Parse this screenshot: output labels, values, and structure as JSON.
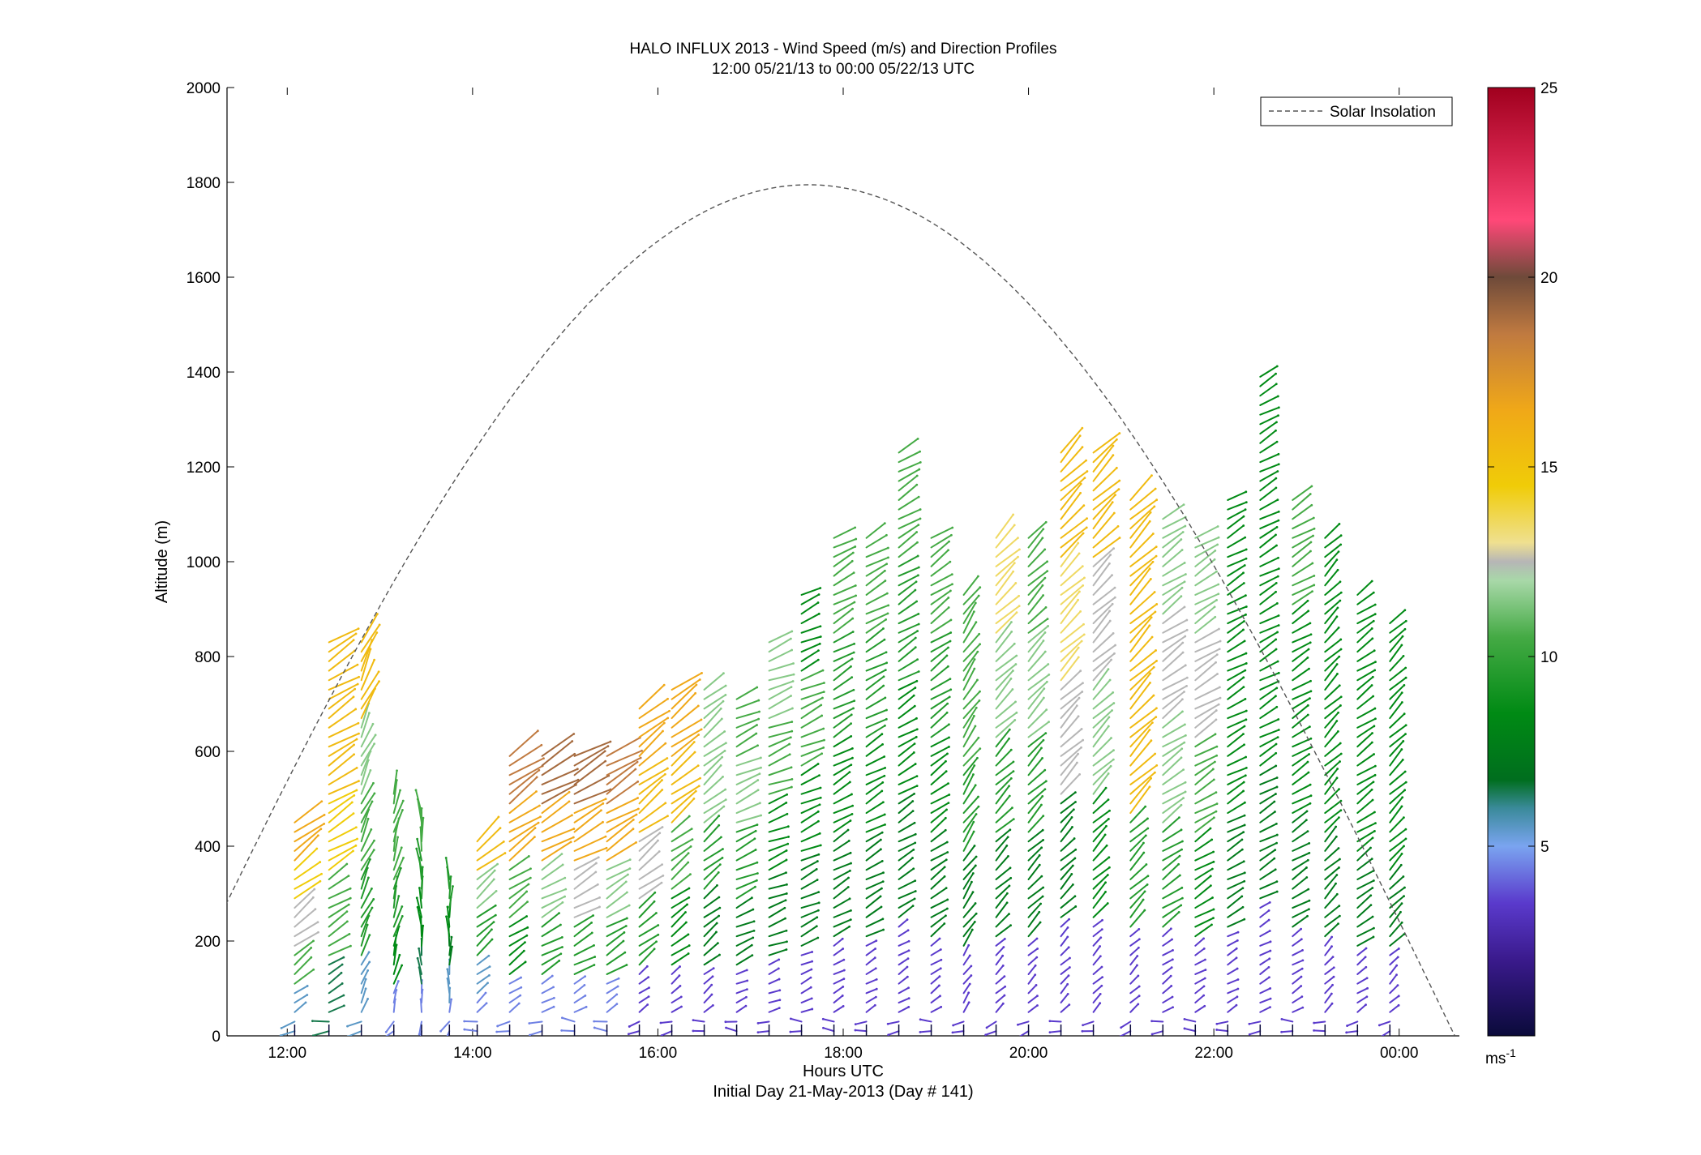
{
  "chart_data": {
    "type": "wind-barb-profile",
    "title": "HALO INFLUX 2013 - Wind Speed (m/s) and Direction Profiles",
    "subtitle": "12:00 05/21/13 to 00:00 05/22/13  UTC",
    "xlabel": "Hours UTC",
    "xlabel2": "Initial Day 21-May-2013 (Day # 141)",
    "ylabel": "Altitude (m)",
    "xlim": [
      11.35,
      24.65
    ],
    "ylim": [
      0,
      2000
    ],
    "x_ticks": [
      {
        "value": 12,
        "label": "12:00"
      },
      {
        "value": 14,
        "label": "14:00"
      },
      {
        "value": 16,
        "label": "16:00"
      },
      {
        "value": 18,
        "label": "18:00"
      },
      {
        "value": 20,
        "label": "20:00"
      },
      {
        "value": 22,
        "label": "22:00"
      },
      {
        "value": 24,
        "label": "00:00"
      }
    ],
    "y_ticks": [
      0,
      200,
      400,
      600,
      800,
      1000,
      1200,
      1400,
      1600,
      1800,
      2000
    ],
    "legend": {
      "label": "Solar Insolation",
      "placement": "top-right"
    },
    "colorbar": {
      "min": 0,
      "max": 25,
      "ticks": [
        5,
        10,
        15,
        20,
        25
      ],
      "unit_label": "ms",
      "unit_exp": "-1"
    },
    "solar_insolation": {
      "peak_hour": 17.6,
      "peak_altitude": 1795,
      "zero_hours": [
        10.65,
        24.6
      ]
    },
    "profiles": [
      {
        "t": 12.08,
        "top": 460,
        "dir": 232,
        "spd": [
          5.5,
          10.5,
          12.5,
          14.5,
          16.5
        ]
      },
      {
        "t": 12.45,
        "top": 830,
        "dir": 238,
        "spd": [
          6.5,
          10.5,
          14.5,
          15.5,
          15.5
        ]
      },
      {
        "t": 12.8,
        "top": 830,
        "dir": 205,
        "spd": [
          5.5,
          9.5,
          10.5,
          11.5,
          15.5
        ]
      },
      {
        "t": 13.15,
        "top": 520,
        "dir": 195,
        "spd": [
          4.5,
          8.5,
          9.5,
          10.5,
          10.5
        ]
      },
      {
        "t": 13.45,
        "top": 470,
        "dir": 175,
        "spd": [
          4.5,
          6.5,
          8.5,
          9.5,
          10.5
        ]
      },
      {
        "t": 13.75,
        "top": 330,
        "dir": 180,
        "spd": [
          4.5,
          5.5,
          7.5,
          8.5,
          9.5
        ]
      },
      {
        "t": 14.05,
        "top": 420,
        "dir": 230,
        "spd": [
          4.5,
          5.5,
          9.5,
          11.5,
          15.5
        ]
      },
      {
        "t": 14.4,
        "top": 600,
        "dir": 235,
        "spd": [
          4.5,
          8.5,
          10.5,
          16.5,
          18.5
        ]
      },
      {
        "t": 14.75,
        "top": 600,
        "dir": 240,
        "spd": [
          4.5,
          9.5,
          11.5,
          16.5,
          19
        ]
      },
      {
        "t": 15.1,
        "top": 600,
        "dir": 240,
        "spd": [
          4.5,
          9.5,
          12.5,
          16.5,
          19
        ]
      },
      {
        "t": 15.45,
        "top": 600,
        "dir": 238,
        "spd": [
          4.5,
          9.5,
          11.5,
          16.5,
          18.5
        ]
      },
      {
        "t": 15.8,
        "top": 700,
        "dir": 232,
        "spd": [
          3.5,
          9.5,
          12.5,
          15.5,
          16.5
        ]
      },
      {
        "t": 16.15,
        "top": 730,
        "dir": 232,
        "spd": [
          3.5,
          8.5,
          10.5,
          15.5,
          16.5
        ]
      },
      {
        "t": 16.5,
        "top": 730,
        "dir": 230,
        "spd": [
          3.5,
          7.5,
          9.5,
          11.5,
          11.5
        ]
      },
      {
        "t": 16.85,
        "top": 720,
        "dir": 245,
        "spd": [
          3.5,
          7.5,
          9.5,
          11.5,
          10.5
        ]
      },
      {
        "t": 17.2,
        "top": 830,
        "dir": 248,
        "spd": [
          3.5,
          7.5,
          8.5,
          10.5,
          11.5
        ]
      },
      {
        "t": 17.55,
        "top": 940,
        "dir": 245,
        "spd": [
          3.5,
          7.5,
          8.5,
          10.5,
          8.5
        ]
      },
      {
        "t": 17.9,
        "top": 1050,
        "dir": 240,
        "spd": [
          3.5,
          7.5,
          8.5,
          9.5,
          10.5
        ]
      },
      {
        "t": 18.25,
        "top": 1050,
        "dir": 240,
        "spd": [
          3.5,
          7.5,
          8.5,
          9.5,
          10.5
        ]
      },
      {
        "t": 18.6,
        "top": 1240,
        "dir": 238,
        "spd": [
          3.5,
          7.5,
          8.5,
          9.5,
          10.5
        ]
      },
      {
        "t": 18.95,
        "top": 1050,
        "dir": 235,
        "spd": [
          3.5,
          7.5,
          8.5,
          9.5,
          10.5
        ]
      },
      {
        "t": 19.3,
        "top": 940,
        "dir": 215,
        "spd": [
          3.5,
          7.5,
          9.5,
          10.5,
          10.5
        ]
      },
      {
        "t": 19.65,
        "top": 1050,
        "dir": 225,
        "spd": [
          3.5,
          7.5,
          9.5,
          11.5,
          13.5
        ]
      },
      {
        "t": 20.0,
        "top": 1050,
        "dir": 225,
        "spd": [
          3.5,
          7.5,
          9.5,
          11.5,
          10.5
        ]
      },
      {
        "t": 20.35,
        "top": 1240,
        "dir": 225,
        "spd": [
          3.5,
          7.5,
          12.5,
          13.5,
          15.5
        ]
      },
      {
        "t": 20.7,
        "top": 1240,
        "dir": 225,
        "spd": [
          3.5,
          8.5,
          11.5,
          12.5,
          15.5
        ]
      },
      {
        "t": 21.1,
        "top": 1130,
        "dir": 225,
        "spd": [
          3.5,
          9.5,
          15.5,
          15.5,
          15.5
        ]
      },
      {
        "t": 21.45,
        "top": 1100,
        "dir": 235,
        "spd": [
          3.5,
          9.5,
          11.5,
          12.5,
          11.5
        ]
      },
      {
        "t": 21.8,
        "top": 1050,
        "dir": 238,
        "spd": [
          3.5,
          8.5,
          10.5,
          12.5,
          11.5
        ]
      },
      {
        "t": 22.15,
        "top": 1130,
        "dir": 240,
        "spd": [
          3.5,
          7.5,
          8.5,
          8.5,
          8.5
        ]
      },
      {
        "t": 22.5,
        "top": 1400,
        "dir": 240,
        "spd": [
          3.5,
          7.5,
          8.5,
          8.5,
          8.5
        ]
      },
      {
        "t": 22.85,
        "top": 1130,
        "dir": 238,
        "spd": [
          3.5,
          7.5,
          8.5,
          8.5,
          10.5
        ]
      },
      {
        "t": 23.2,
        "top": 1050,
        "dir": 225,
        "spd": [
          3.5,
          7.5,
          8.5,
          8.5,
          8.5
        ]
      },
      {
        "t": 23.55,
        "top": 940,
        "dir": 235,
        "spd": [
          3.5,
          7.5,
          8.5,
          8.5,
          8.5
        ]
      },
      {
        "t": 23.9,
        "top": 870,
        "dir": 225,
        "spd": [
          3.5,
          7.5,
          8.5,
          8.5,
          8.5
        ]
      }
    ]
  }
}
